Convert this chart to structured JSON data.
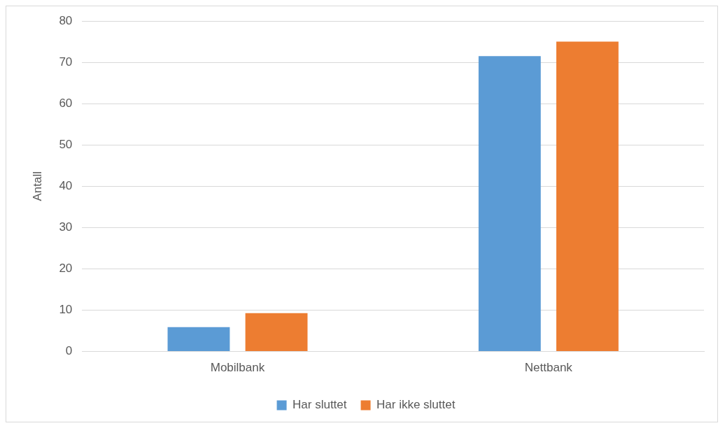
{
  "chart_data": {
    "type": "bar",
    "ylabel": "Antall",
    "categories": [
      "Mobilbank",
      "Nettbank"
    ],
    "series": [
      {
        "name": "Har sluttet",
        "color": "#5b9bd5",
        "values": [
          5.9,
          71.5
        ]
      },
      {
        "name": "Har ikke sluttet",
        "color": "#ed7d31",
        "values": [
          9.3,
          75
        ]
      }
    ],
    "ylim": [
      0,
      80
    ],
    "yticks": [
      0,
      10,
      20,
      30,
      40,
      50,
      60,
      70,
      80
    ],
    "grid": "y",
    "legend": "bottom"
  }
}
